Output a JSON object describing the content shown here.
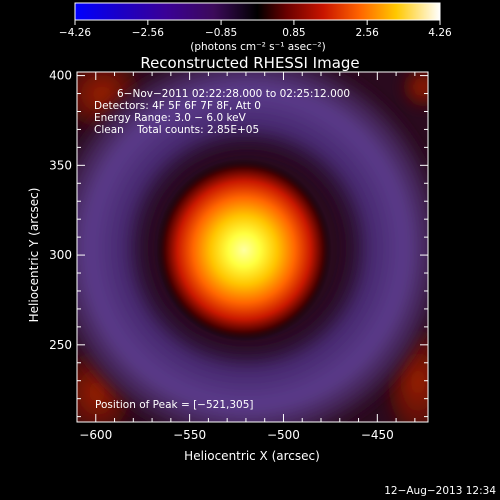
{
  "chart_data": {
    "type": "heatmap",
    "title": "Reconstructed RHESSI Image",
    "xlabel": "Heliocentric X (arcsec)",
    "ylabel": "Heliocentric Y (arcsec)",
    "xlim": [
      -610,
      -423
    ],
    "ylim": [
      207,
      402
    ],
    "x_ticks": [
      -600,
      -550,
      -500,
      -450
    ],
    "y_ticks": [
      250,
      300,
      350,
      400
    ],
    "x_tick_labels": [
      "−600",
      "−550",
      "−500",
      "−450"
    ],
    "y_tick_labels": [
      "250",
      "300",
      "350",
      "400"
    ],
    "colorbar": {
      "range": [
        -4.26,
        4.26
      ],
      "ticks": [
        -4.26,
        -2.56,
        -0.85,
        0.85,
        2.56,
        4.26
      ],
      "tick_labels": [
        "−4.26",
        "−2.56",
        "−0.85",
        "0.85",
        "2.56",
        "4.26"
      ],
      "unit_text": "(photons cm⁻² s⁻¹ asec⁻²)"
    },
    "peak": [
      -521,
      305
    ],
    "annotations": {
      "time": "6−Nov−2011 02:22:28.000 to 02:25:12.000",
      "detectors": "Detectors: 4F 5F 6F 7F 8F, Att 0",
      "energy": "Energy Range: 3.0 − 6.0 keV",
      "clean": "Clean    Total counts: 2.85E+05",
      "peak_text": "Position of Peak = [−521,305]"
    },
    "footer_date": "12−Aug−2013 12:34"
  },
  "colors": {
    "background": "#000000",
    "ring": "#5a3a8a",
    "halo": "#2a0a1a",
    "core_hot": "#ffff80",
    "corner_red": "#8a1a00"
  }
}
